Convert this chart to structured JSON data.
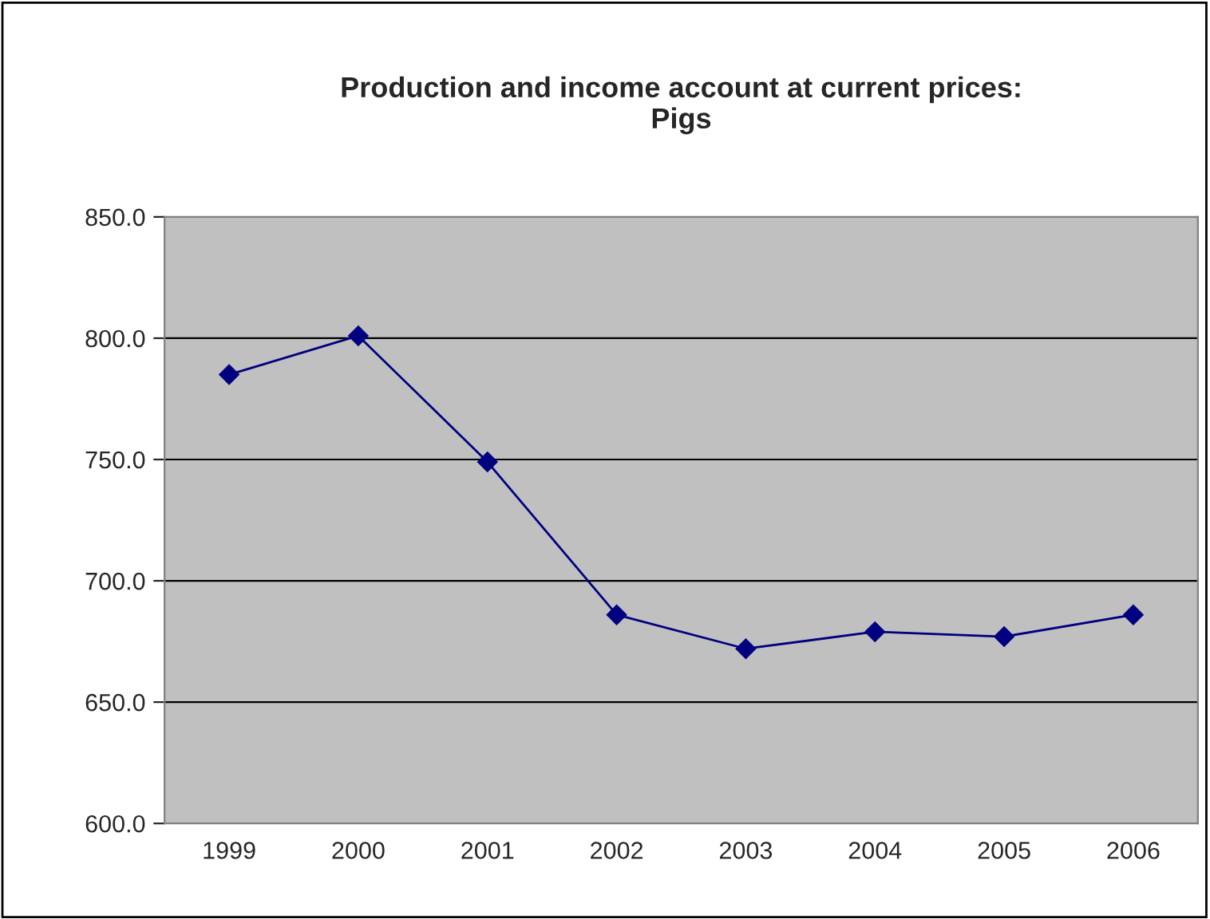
{
  "chart_data": {
    "type": "line",
    "title": "Production and income account at current prices:\nPigs",
    "categories": [
      "1999",
      "2000",
      "2001",
      "2002",
      "2003",
      "2004",
      "2005",
      "2006"
    ],
    "series": [
      {
        "color": "#000080",
        "values": [
          785,
          801,
          749,
          686,
          672,
          679,
          677,
          686
        ]
      }
    ],
    "ylim": [
      600,
      850
    ],
    "yticks": [
      {
        "value": 600,
        "label": "600.0"
      },
      {
        "value": 650,
        "label": "650.0"
      },
      {
        "value": 700,
        "label": "700.0"
      },
      {
        "value": 750,
        "label": "750.0"
      },
      {
        "value": 800,
        "label": "800.0"
      },
      {
        "value": 850,
        "label": "850.0"
      }
    ],
    "grid": "y",
    "marker": "diamond",
    "line_style": "solid",
    "legend": false
  }
}
